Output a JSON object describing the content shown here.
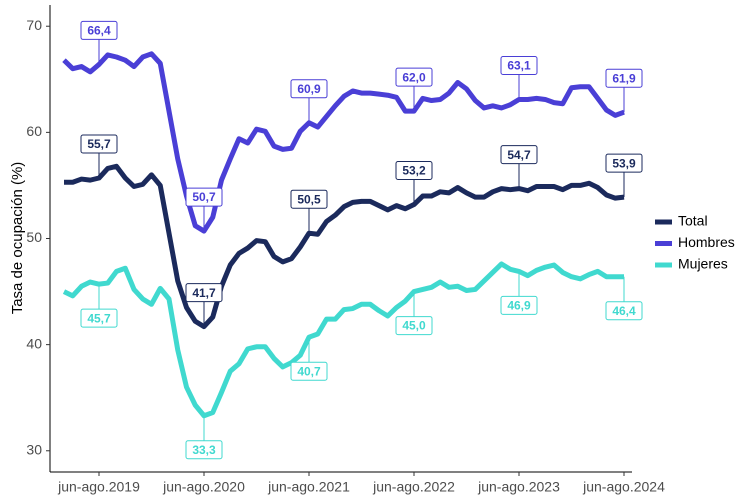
{
  "chart_data": {
    "type": "line",
    "y_label": "Tasa de ocupación (%)",
    "categories": [
      null,
      null,
      null,
      null,
      "jun-ago.2019",
      null,
      null,
      null,
      null,
      null,
      null,
      null,
      null,
      null,
      null,
      null,
      "jun-ago.2020",
      null,
      null,
      null,
      null,
      null,
      null,
      null,
      null,
      null,
      null,
      null,
      "jun-ago.2021",
      null,
      null,
      null,
      null,
      null,
      null,
      null,
      null,
      null,
      null,
      null,
      "jun-ago.2022",
      null,
      null,
      null,
      null,
      null,
      null,
      null,
      null,
      null,
      null,
      null,
      "jun-ago.2023",
      null,
      null,
      null,
      null,
      null,
      null,
      null,
      null,
      null,
      null,
      null,
      "jun-ago.2024"
    ],
    "ylim": [
      28,
      72
    ],
    "yticks": [
      30,
      40,
      50,
      60,
      70
    ],
    "grid": false,
    "legend": "right",
    "series": [
      {
        "name": "Total",
        "color": "#1b2a5c",
        "label_side": "above",
        "values": [
          55.3,
          55.3,
          55.6,
          55.5,
          55.7,
          56.6,
          56.8,
          55.7,
          54.9,
          55.1,
          56.0,
          55.0,
          50.5,
          46.0,
          43.5,
          42.2,
          41.7,
          42.6,
          45.5,
          47.5,
          48.6,
          49.1,
          49.8,
          49.7,
          48.3,
          47.8,
          48.1,
          49.2,
          50.5,
          50.4,
          51.6,
          52.2,
          53.0,
          53.4,
          53.5,
          53.5,
          53.1,
          52.7,
          53.1,
          52.8,
          53.2,
          54.0,
          54.0,
          54.4,
          54.3,
          54.8,
          54.3,
          53.9,
          53.9,
          54.4,
          54.7,
          54.6,
          54.7,
          54.5,
          54.9,
          54.9,
          54.9,
          54.6,
          55.0,
          55.0,
          55.2,
          54.8,
          54.1,
          53.8,
          53.9
        ],
        "value_labels": [
          null,
          null,
          null,
          null,
          "55,7",
          null,
          null,
          null,
          null,
          null,
          null,
          null,
          null,
          null,
          null,
          null,
          "41,7",
          null,
          null,
          null,
          null,
          null,
          null,
          null,
          null,
          null,
          null,
          null,
          "50,5",
          null,
          null,
          null,
          null,
          null,
          null,
          null,
          null,
          null,
          null,
          null,
          "53,2",
          null,
          null,
          null,
          null,
          null,
          null,
          null,
          null,
          null,
          null,
          null,
          "54,7",
          null,
          null,
          null,
          null,
          null,
          null,
          null,
          null,
          null,
          null,
          null,
          "53,9"
        ]
      },
      {
        "name": "Hombres",
        "color": "#4a3fd6",
        "label_side": "above",
        "values": [
          66.8,
          66.0,
          66.2,
          65.7,
          66.4,
          67.3,
          67.1,
          66.8,
          66.2,
          67.1,
          67.4,
          66.5,
          62.0,
          57.5,
          54.0,
          51.2,
          50.7,
          52.0,
          55.5,
          57.5,
          59.4,
          59.0,
          60.3,
          60.1,
          58.7,
          58.4,
          58.5,
          60.1,
          60.9,
          60.5,
          61.5,
          62.5,
          63.4,
          63.9,
          63.7,
          63.7,
          63.6,
          63.5,
          63.3,
          62.0,
          62.0,
          63.2,
          63.0,
          63.1,
          63.7,
          64.7,
          64.1,
          63.0,
          62.3,
          62.5,
          62.3,
          62.6,
          63.1,
          63.1,
          63.2,
          63.1,
          62.8,
          62.7,
          64.2,
          64.3,
          64.3,
          63.2,
          62.1,
          61.6,
          61.9
        ],
        "value_labels": [
          null,
          null,
          null,
          null,
          "66,4",
          null,
          null,
          null,
          null,
          null,
          null,
          null,
          null,
          null,
          null,
          null,
          "50,7",
          null,
          null,
          null,
          null,
          null,
          null,
          null,
          null,
          null,
          null,
          null,
          "60,9",
          null,
          null,
          null,
          null,
          null,
          null,
          null,
          null,
          null,
          null,
          null,
          "62,0",
          null,
          null,
          null,
          null,
          null,
          null,
          null,
          null,
          null,
          null,
          null,
          "63,1",
          null,
          null,
          null,
          null,
          null,
          null,
          null,
          null,
          null,
          null,
          null,
          "61,9"
        ]
      },
      {
        "name": "Mujeres",
        "color": "#40d9cf",
        "label_side": "below",
        "values": [
          45.0,
          44.6,
          45.5,
          45.9,
          45.7,
          45.8,
          46.9,
          47.2,
          45.2,
          44.3,
          43.8,
          45.3,
          44.3,
          39.5,
          36.0,
          34.3,
          33.3,
          33.6,
          35.5,
          37.5,
          38.2,
          39.6,
          39.8,
          39.8,
          38.7,
          37.9,
          38.3,
          39.0,
          40.7,
          41.0,
          42.4,
          42.4,
          43.3,
          43.4,
          43.8,
          43.8,
          43.2,
          42.7,
          43.5,
          44.1,
          45.0,
          45.2,
          45.4,
          45.9,
          45.4,
          45.5,
          45.1,
          45.2,
          46.0,
          46.8,
          47.6,
          47.1,
          46.9,
          46.5,
          47.0,
          47.3,
          47.5,
          46.8,
          46.4,
          46.2,
          46.6,
          46.9,
          46.4,
          46.4,
          46.4
        ],
        "value_labels": [
          null,
          null,
          null,
          null,
          "45,7",
          null,
          null,
          null,
          null,
          null,
          null,
          null,
          null,
          null,
          null,
          null,
          "33,3",
          null,
          null,
          null,
          null,
          null,
          null,
          null,
          null,
          null,
          null,
          null,
          "40,7",
          null,
          null,
          null,
          null,
          null,
          null,
          null,
          null,
          null,
          null,
          null,
          "45,0",
          null,
          null,
          null,
          null,
          null,
          null,
          null,
          null,
          null,
          null,
          null,
          "46,9",
          null,
          null,
          null,
          null,
          null,
          null,
          null,
          null,
          null,
          null,
          null,
          "46,4"
        ]
      }
    ]
  }
}
